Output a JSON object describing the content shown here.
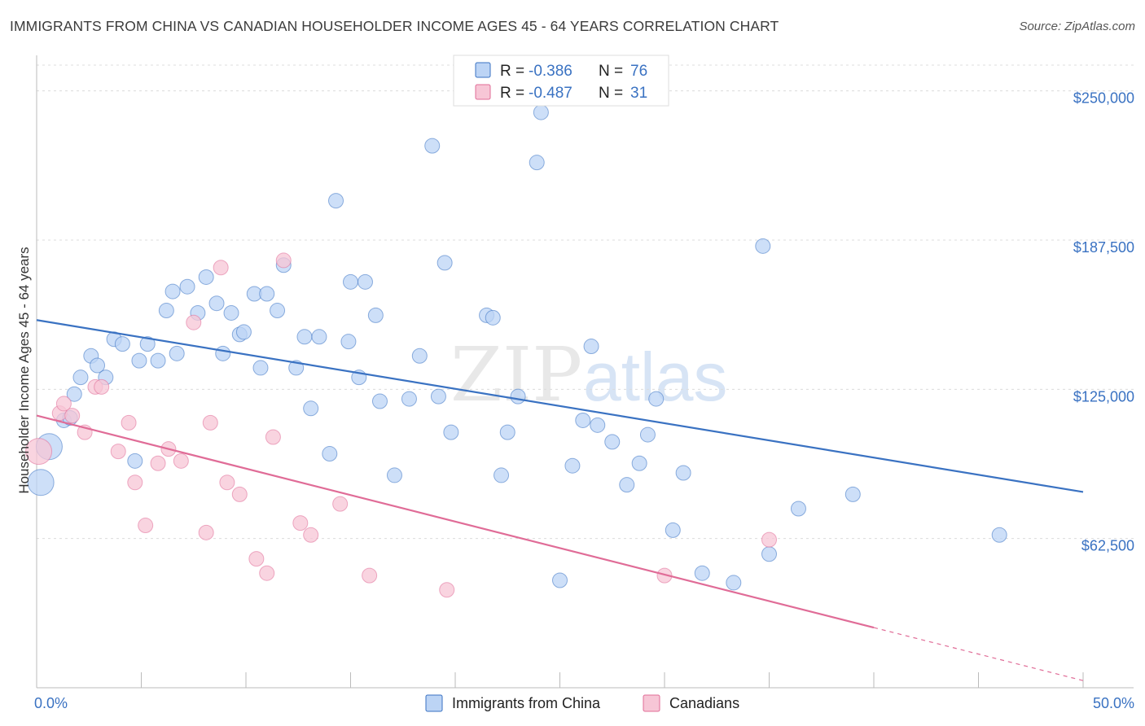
{
  "title": "IMMIGRANTS FROM CHINA VS CANADIAN HOUSEHOLDER INCOME AGES 45 - 64 YEARS CORRELATION CHART",
  "source": "Source: ZipAtlas.com",
  "watermark": {
    "zip": "ZIP",
    "atlas": "atlas"
  },
  "colors": {
    "china": "#3a72c2",
    "china_fill": "#bcd4f5",
    "canadian": "#e06c97",
    "canadian_fill": "#f7c6d6",
    "tick_text": "#3a72c2"
  },
  "legend": {
    "rows": [
      {
        "r_label": "R =",
        "r_value": "-0.386",
        "n_label": "N =",
        "n_value": "76"
      },
      {
        "r_label": "R =",
        "r_value": "-0.487",
        "n_label": "N =",
        "n_value": "31"
      }
    ]
  },
  "chart_data": {
    "type": "scatter",
    "title": "IMMIGRANTS FROM CHINA VS CANADIAN HOUSEHOLDER INCOME AGES 45 - 64 YEARS CORRELATION CHART",
    "xlabel": "",
    "ylabel": "Householder Income Ages 45 - 64 years",
    "xlim": [
      0,
      50
    ],
    "ylim": [
      0,
      262500
    ],
    "x_ticks": [
      {
        "value": 0,
        "label": "0.0%"
      },
      {
        "value": 50,
        "label": "50.0%"
      }
    ],
    "y_ticks": [
      {
        "value": 62500,
        "label": "$62,500"
      },
      {
        "value": 125000,
        "label": "$125,000"
      },
      {
        "value": 187500,
        "label": "$187,500"
      },
      {
        "value": 250000,
        "label": "$250,000"
      }
    ],
    "grid": true,
    "legend_position": "top-center",
    "series": [
      {
        "name": "Immigrants from China",
        "color": "#3a72c2",
        "fill": "#bcd4f5",
        "r": -0.386,
        "n": 76,
        "trend": {
          "x": [
            0,
            50
          ],
          "y": [
            154000,
            82000
          ]
        },
        "points": [
          [
            0.2,
            86000,
            2
          ],
          [
            0.6,
            101000,
            2
          ],
          [
            1.3,
            112000,
            1
          ],
          [
            1.6,
            113000,
            1
          ],
          [
            1.8,
            123000,
            1
          ],
          [
            2.1,
            130000,
            1
          ],
          [
            2.6,
            139000,
            1
          ],
          [
            2.9,
            135000,
            1
          ],
          [
            3.3,
            130000,
            1
          ],
          [
            3.7,
            146000,
            1
          ],
          [
            4.1,
            144000,
            1
          ],
          [
            4.7,
            95000,
            1
          ],
          [
            4.9,
            137000,
            1
          ],
          [
            5.3,
            144000,
            1
          ],
          [
            5.8,
            137000,
            1
          ],
          [
            6.2,
            158000,
            1
          ],
          [
            6.5,
            166000,
            1
          ],
          [
            6.7,
            140000,
            1
          ],
          [
            7.2,
            168000,
            1
          ],
          [
            7.7,
            157000,
            1
          ],
          [
            8.1,
            172000,
            1
          ],
          [
            8.6,
            161000,
            1
          ],
          [
            8.9,
            140000,
            1
          ],
          [
            9.3,
            157000,
            1
          ],
          [
            9.7,
            148000,
            1
          ],
          [
            9.9,
            149000,
            1
          ],
          [
            10.4,
            165000,
            1
          ],
          [
            10.7,
            134000,
            1
          ],
          [
            11.0,
            165000,
            1
          ],
          [
            11.5,
            158000,
            1
          ],
          [
            11.8,
            177000,
            1
          ],
          [
            12.4,
            134000,
            1
          ],
          [
            12.8,
            147000,
            1
          ],
          [
            13.1,
            117000,
            1
          ],
          [
            13.5,
            147000,
            1
          ],
          [
            14.0,
            98000,
            1
          ],
          [
            14.3,
            204000,
            1
          ],
          [
            14.9,
            145000,
            1
          ],
          [
            15.0,
            170000,
            1
          ],
          [
            15.4,
            130000,
            1
          ],
          [
            15.7,
            170000,
            1
          ],
          [
            16.2,
            156000,
            1
          ],
          [
            16.4,
            120000,
            1
          ],
          [
            17.1,
            89000,
            1
          ],
          [
            17.8,
            121000,
            1
          ],
          [
            18.3,
            139000,
            1
          ],
          [
            18.9,
            227000,
            1
          ],
          [
            19.2,
            122000,
            1
          ],
          [
            19.5,
            178000,
            1
          ],
          [
            19.8,
            107000,
            1
          ],
          [
            21.5,
            156000,
            1
          ],
          [
            21.8,
            155000,
            1
          ],
          [
            22.2,
            89000,
            1
          ],
          [
            22.5,
            107000,
            1
          ],
          [
            23.0,
            122000,
            1
          ],
          [
            23.9,
            220000,
            1
          ],
          [
            24.1,
            241000,
            1
          ],
          [
            25.0,
            45000,
            1
          ],
          [
            25.6,
            93000,
            1
          ],
          [
            26.1,
            112000,
            1
          ],
          [
            26.5,
            143000,
            1
          ],
          [
            26.8,
            110000,
            1
          ],
          [
            27.5,
            103000,
            1
          ],
          [
            28.2,
            85000,
            1
          ],
          [
            28.8,
            94000,
            1
          ],
          [
            29.2,
            106000,
            1
          ],
          [
            29.6,
            121000,
            1
          ],
          [
            30.4,
            66000,
            1
          ],
          [
            30.9,
            90000,
            1
          ],
          [
            31.8,
            48000,
            1
          ],
          [
            33.3,
            44000,
            1
          ],
          [
            34.7,
            185000,
            1
          ],
          [
            35.0,
            56000,
            1
          ],
          [
            36.4,
            75000,
            1
          ],
          [
            39.0,
            81000,
            1
          ],
          [
            46.0,
            64000,
            1
          ]
        ]
      },
      {
        "name": "Canadians",
        "color": "#e06c97",
        "fill": "#f7c6d6",
        "r": -0.487,
        "n": 31,
        "trend": {
          "x": [
            0,
            50
          ],
          "y": [
            114000,
            3000
          ]
        },
        "trend_solid_until_x": 40,
        "points": [
          [
            0.1,
            99000,
            2
          ],
          [
            1.1,
            115000,
            1
          ],
          [
            1.3,
            119000,
            1
          ],
          [
            1.7,
            114000,
            1
          ],
          [
            2.3,
            107000,
            1
          ],
          [
            2.8,
            126000,
            1
          ],
          [
            3.1,
            126000,
            1
          ],
          [
            3.9,
            99000,
            1
          ],
          [
            4.4,
            111000,
            1
          ],
          [
            4.7,
            86000,
            1
          ],
          [
            5.2,
            68000,
            1
          ],
          [
            5.8,
            94000,
            1
          ],
          [
            6.3,
            100000,
            1
          ],
          [
            6.9,
            95000,
            1
          ],
          [
            7.5,
            153000,
            1
          ],
          [
            8.1,
            65000,
            1
          ],
          [
            8.3,
            111000,
            1
          ],
          [
            8.8,
            176000,
            1
          ],
          [
            9.1,
            86000,
            1
          ],
          [
            9.7,
            81000,
            1
          ],
          [
            10.5,
            54000,
            1
          ],
          [
            11.0,
            48000,
            1
          ],
          [
            11.3,
            105000,
            1
          ],
          [
            11.8,
            179000,
            1
          ],
          [
            12.6,
            69000,
            1
          ],
          [
            13.1,
            64000,
            1
          ],
          [
            14.5,
            77000,
            1
          ],
          [
            15.9,
            47000,
            1
          ],
          [
            19.6,
            41000,
            1
          ],
          [
            30.0,
            47000,
            1
          ],
          [
            35.0,
            62000,
            1
          ]
        ]
      }
    ]
  },
  "bottom_legend": [
    "Immigrants from China",
    "Canadians"
  ]
}
